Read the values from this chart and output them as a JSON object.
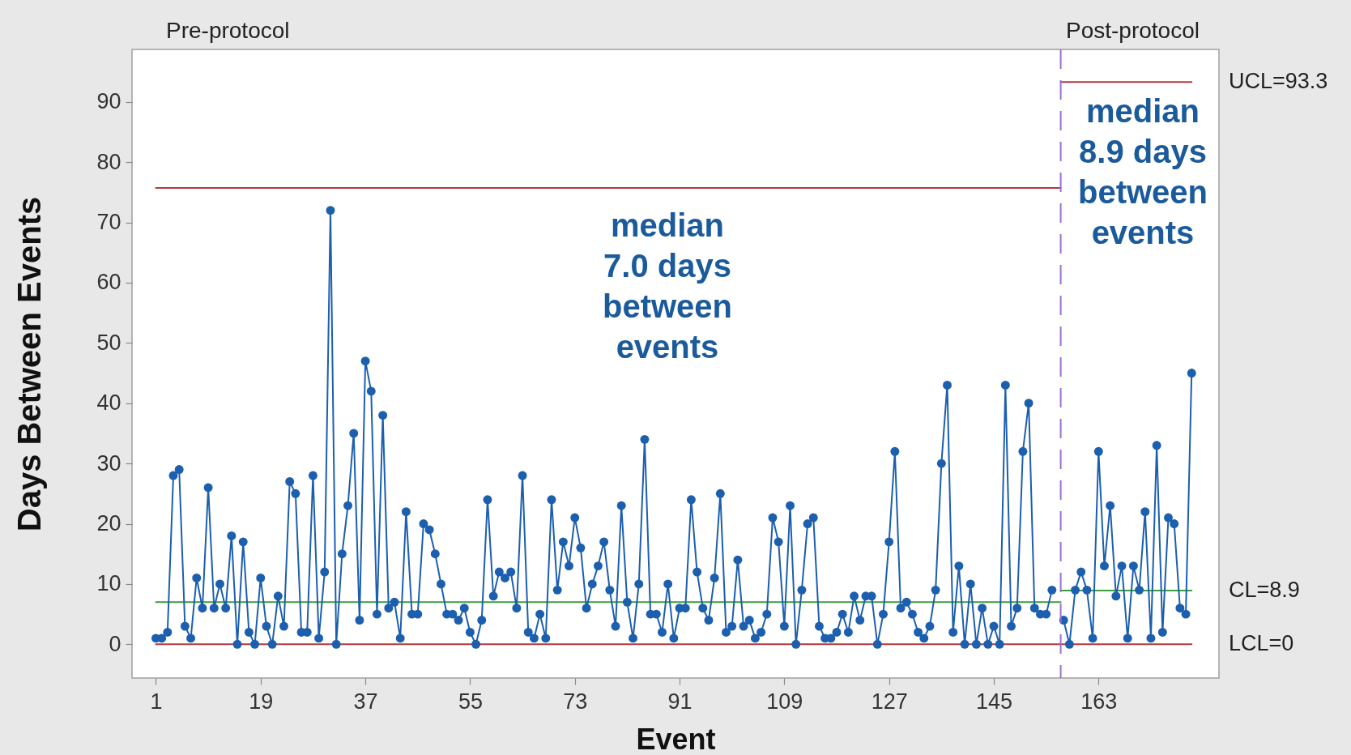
{
  "chart_data": {
    "type": "line",
    "xlabel": "Event",
    "ylabel": "Days Between Events",
    "x": [
      1,
      2,
      3,
      4,
      5,
      6,
      7,
      8,
      9,
      10,
      11,
      12,
      13,
      14,
      15,
      16,
      17,
      18,
      19,
      20,
      21,
      22,
      23,
      24,
      25,
      26,
      27,
      28,
      29,
      30,
      31,
      32,
      33,
      34,
      35,
      36,
      37,
      38,
      39,
      40,
      41,
      42,
      43,
      44,
      45,
      46,
      47,
      48,
      49,
      50,
      51,
      52,
      53,
      54,
      55,
      56,
      57,
      58,
      59,
      60,
      61,
      62,
      63,
      64,
      65,
      66,
      67,
      68,
      69,
      70,
      71,
      72,
      73,
      74,
      75,
      76,
      77,
      78,
      79,
      80,
      81,
      82,
      83,
      84,
      85,
      86,
      87,
      88,
      89,
      90,
      91,
      92,
      93,
      94,
      95,
      96,
      97,
      98,
      99,
      100,
      101,
      102,
      103,
      104,
      105,
      106,
      107,
      108,
      109,
      110,
      111,
      112,
      113,
      114,
      115,
      116,
      117,
      118,
      119,
      120,
      121,
      122,
      123,
      124,
      125,
      126,
      127,
      128,
      129,
      130,
      131,
      132,
      133,
      134,
      135,
      136,
      137,
      138,
      139,
      140,
      141,
      142,
      143,
      144,
      145,
      146,
      147,
      148,
      149,
      150,
      151,
      152,
      153,
      154,
      155,
      156,
      157,
      158,
      159,
      160,
      161,
      162,
      163,
      164,
      165,
      166,
      167,
      168,
      169,
      170,
      171,
      172,
      173,
      174,
      175,
      176,
      177,
      178,
      179
    ],
    "series": [
      {
        "type": "line",
        "x": [
          1,
          156.5
        ],
        "values": [
          75.7,
          75.7
        ],
        "color": "#b5373a",
        "marker": "none"
      },
      {
        "name": "UCL=93.3",
        "type": "line",
        "x": [
          156.5,
          179
        ],
        "values": [
          93.3,
          93.3
        ],
        "color": "#b5373a",
        "marker": "none"
      },
      {
        "type": "line",
        "x": [
          1,
          156.5
        ],
        "values": [
          7.0,
          7.0
        ],
        "color": "#3f9b3f",
        "marker": "none"
      },
      {
        "name": "CL=8.9",
        "type": "line",
        "x": [
          156.5,
          179
        ],
        "values": [
          8.9,
          8.9
        ],
        "color": "#3f9b3f",
        "marker": "none"
      },
      {
        "name": "LCL=0",
        "type": "line",
        "x": [
          1,
          179
        ],
        "values": [
          0,
          0
        ],
        "color": "#b5373a",
        "marker": "none"
      },
      {
        "color": "#1c5fae",
        "values": [
          1,
          1,
          2,
          28,
          29,
          3,
          1,
          11,
          6,
          26,
          6,
          10,
          6,
          18,
          0,
          17,
          2,
          0,
          11,
          3,
          0,
          8,
          3,
          27,
          25,
          2,
          2,
          28,
          1,
          12,
          72,
          0,
          15,
          23,
          35,
          4,
          47,
          42,
          5,
          38,
          6,
          7,
          1,
          22,
          5,
          5,
          20,
          19,
          15,
          10,
          5,
          5,
          4,
          6,
          2,
          0,
          4,
          24,
          8,
          12,
          11,
          12,
          6,
          28,
          2,
          1,
          5,
          1,
          24,
          9,
          17,
          13,
          21,
          16,
          6,
          10,
          13,
          17,
          9,
          3,
          23,
          7,
          1,
          10,
          34,
          5,
          5,
          2,
          10,
          1,
          6,
          6,
          24,
          12,
          6,
          4,
          11,
          25,
          2,
          3,
          14,
          3,
          4,
          1,
          2,
          5,
          21,
          17,
          3,
          23,
          0,
          9,
          20,
          21,
          3,
          1,
          1,
          2,
          5,
          2,
          8,
          4,
          8,
          8,
          0,
          5,
          17,
          32,
          6,
          7,
          5,
          2,
          1,
          3,
          9,
          30,
          43,
          2,
          13,
          0,
          10,
          0,
          6,
          0,
          3,
          0,
          43,
          3,
          6,
          32,
          40,
          6,
          5,
          5,
          9,
          null,
          4,
          0,
          9,
          12,
          9,
          1,
          32,
          13,
          23,
          8,
          13,
          1,
          13,
          9,
          22,
          1,
          33,
          2,
          21,
          20,
          6,
          5,
          45
        ]
      }
    ],
    "ref_lines": [
      {
        "axis": "x",
        "value": 156.5,
        "color": "#9b6fd3",
        "line_style": "dashed"
      }
    ],
    "annotations": [
      "Pre-protocol",
      "Post-protocol",
      "median\n7.0 days\nbetween\nevents",
      "median\n8.9 days\nbetween\nevents"
    ],
    "xlim": [
      -3.1,
      183.7
    ],
    "ylim": [
      -5.6,
      98.7
    ],
    "xticks": [
      1,
      19,
      37,
      55,
      73,
      91,
      109,
      127,
      145,
      163
    ],
    "yticks": [
      0,
      10,
      20,
      30,
      40,
      50,
      60,
      70,
      80,
      90
    ],
    "marker": "circle",
    "grid": false
  }
}
